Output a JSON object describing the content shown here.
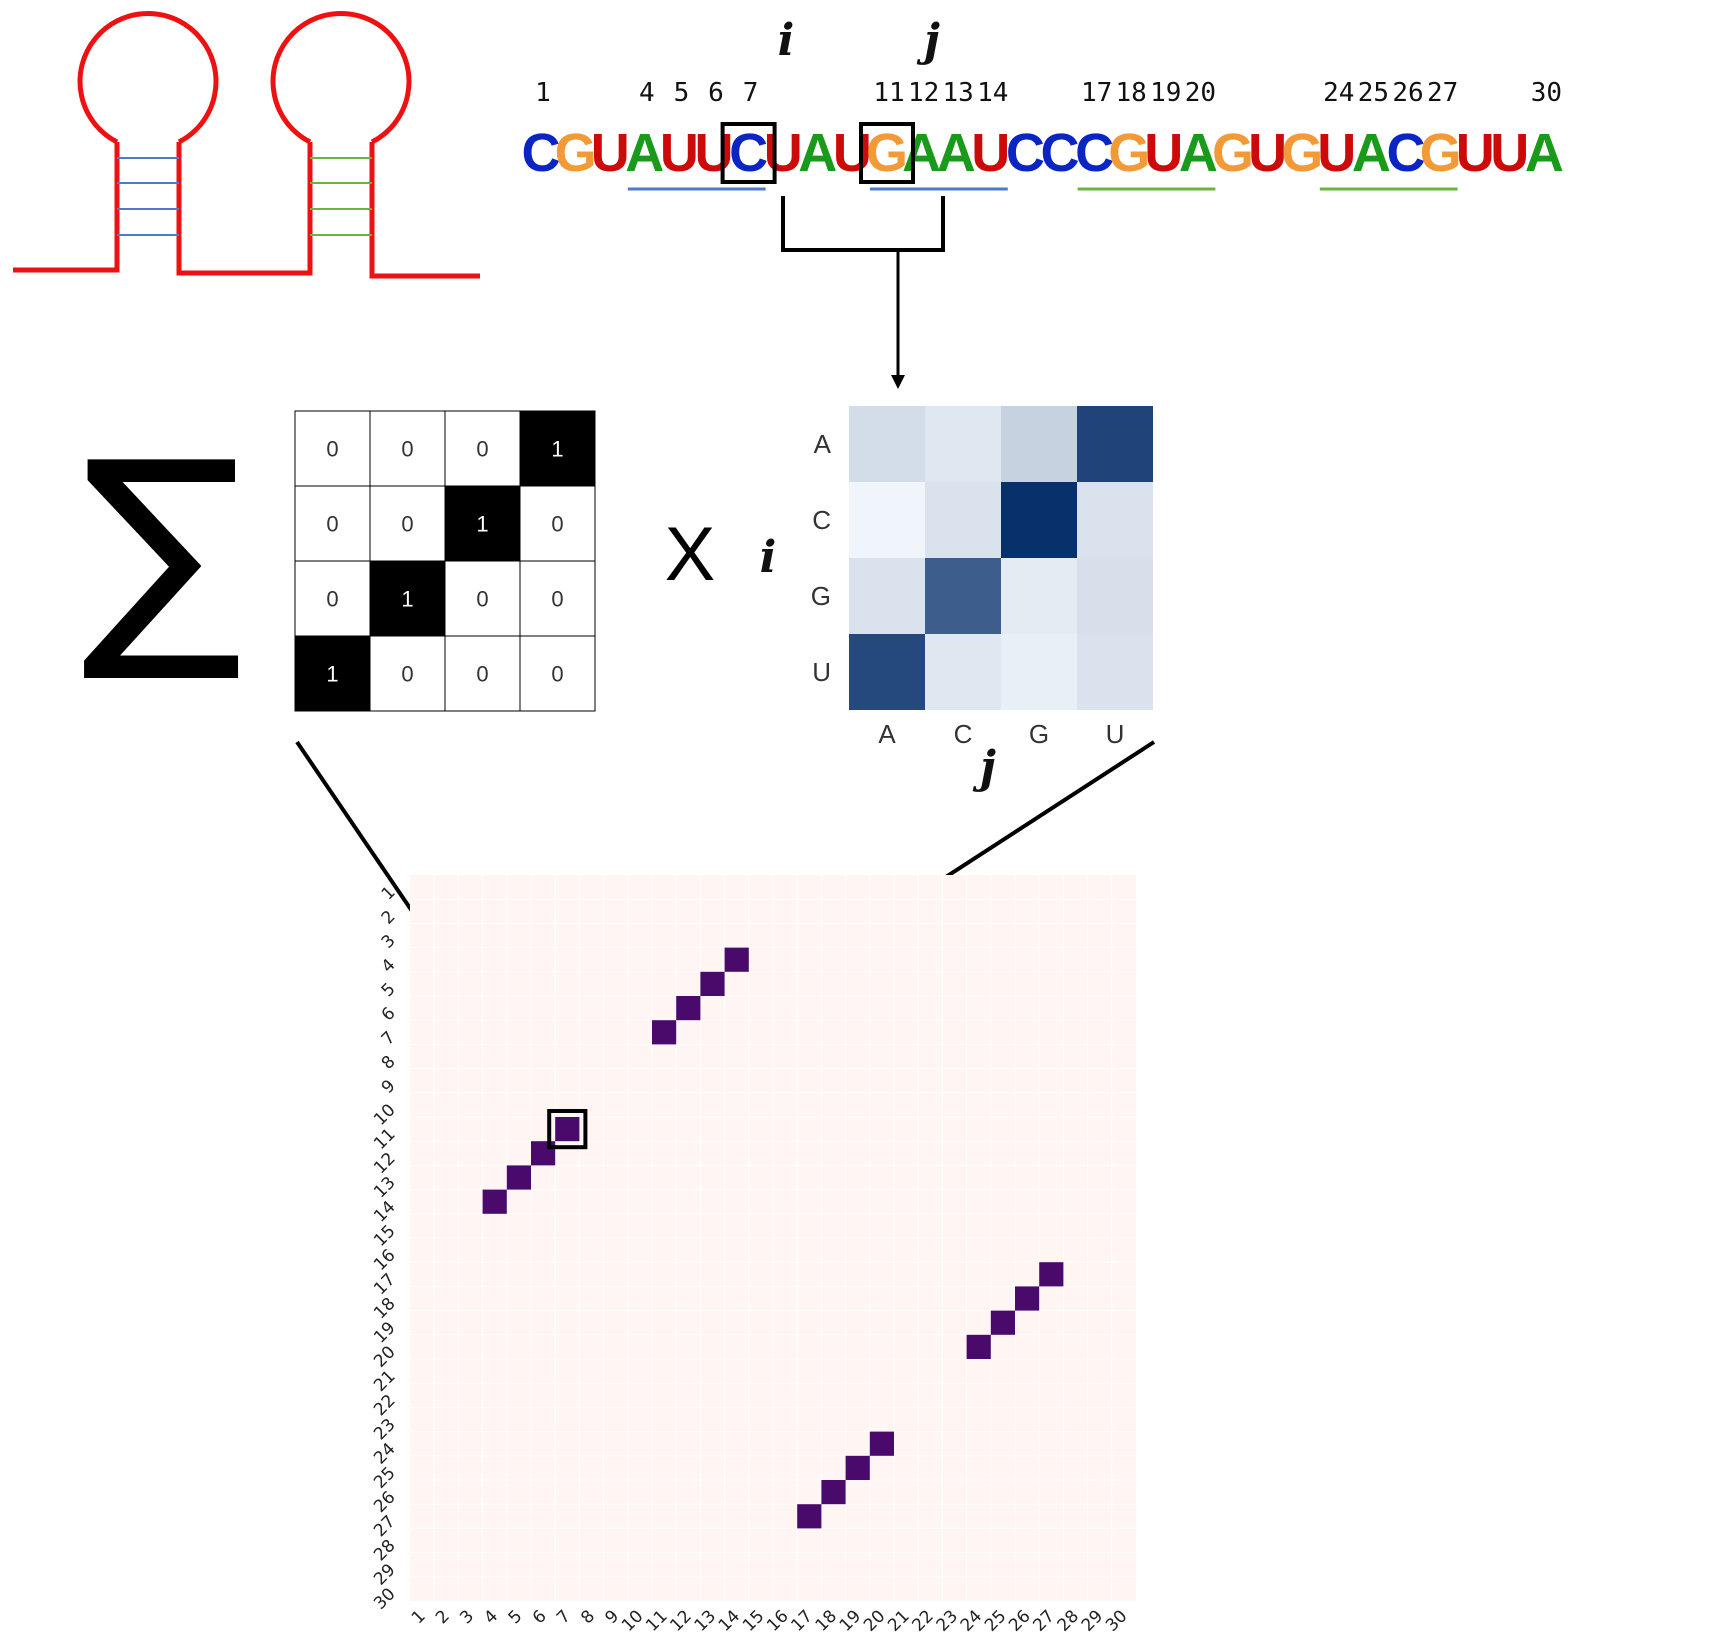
{
  "sequence": {
    "nucleotides": [
      "C",
      "G",
      "U",
      "A",
      "U",
      "U",
      "C",
      "U",
      "A",
      "U",
      "G",
      "A",
      "A",
      "U",
      "C",
      "C",
      "C",
      "G",
      "U",
      "A",
      "G",
      "U",
      "G",
      "U",
      "A",
      "C",
      "G",
      "U",
      "U",
      "A"
    ],
    "position_labels": [
      "1",
      "4",
      "5",
      "6",
      "7",
      "11",
      "12",
      "13",
      "14",
      "17",
      "18",
      "19",
      "20",
      "24",
      "25",
      "26",
      "27",
      "30"
    ],
    "label_positions": [
      1,
      4,
      5,
      6,
      7,
      11,
      12,
      13,
      14,
      17,
      18,
      19,
      20,
      24,
      25,
      26,
      27,
      30
    ],
    "highlight_i": 7,
    "highlight_j": 11,
    "i_label": "i",
    "j_label": "j",
    "colors": {
      "A": "#1a9a1a",
      "C": "#0b24c4",
      "G": "#f39a38",
      "U": "#cc0a0a"
    },
    "underlines": [
      {
        "from": 4,
        "to": 7,
        "color": "#4f79c9"
      },
      {
        "from": 11,
        "to": 14,
        "color": "#4f79c9"
      },
      {
        "from": 17,
        "to": 20,
        "color": "#6db33f"
      },
      {
        "from": 24,
        "to": 27,
        "color": "#6db33f"
      }
    ]
  },
  "hairpins": {
    "stem_colors": [
      "#4f79c9",
      "#6db33f"
    ],
    "loop_color": "#ee1111"
  },
  "operators": {
    "sum": "∑",
    "times": "X"
  },
  "binary_matrix": {
    "values": [
      [
        0,
        0,
        0,
        1
      ],
      [
        0,
        0,
        1,
        0
      ],
      [
        0,
        1,
        0,
        0
      ],
      [
        1,
        0,
        0,
        0
      ]
    ]
  },
  "score_matrix": {
    "row_labels": [
      "A",
      "C",
      "G",
      "U"
    ],
    "col_labels": [
      "A",
      "C",
      "G",
      "U"
    ],
    "row_axis": "i",
    "col_axis": "j",
    "values": [
      [
        0.15,
        0.1,
        0.2,
        0.9
      ],
      [
        0.03,
        0.12,
        1.0,
        0.12
      ],
      [
        0.12,
        0.78,
        0.08,
        0.14
      ],
      [
        0.88,
        0.1,
        0.06,
        0.12
      ]
    ],
    "colormap": "Blues"
  },
  "chart_data": {
    "type": "heatmap",
    "x_ticks": [
      "1",
      "2",
      "3",
      "4",
      "5",
      "6",
      "7",
      "8",
      "9",
      "10",
      "11",
      "12",
      "13",
      "14",
      "15",
      "16",
      "17",
      "18",
      "19",
      "20",
      "21",
      "22",
      "23",
      "24",
      "25",
      "26",
      "27",
      "28",
      "29",
      "30"
    ],
    "y_ticks": [
      "1",
      "2",
      "3",
      "4",
      "5",
      "6",
      "7",
      "8",
      "9",
      "10",
      "11",
      "12",
      "13",
      "14",
      "15",
      "16",
      "17",
      "18",
      "19",
      "20",
      "21",
      "22",
      "23",
      "24",
      "25",
      "26",
      "27",
      "28",
      "29",
      "30"
    ],
    "cells": [
      {
        "x": 14,
        "y": 4
      },
      {
        "x": 13,
        "y": 5
      },
      {
        "x": 12,
        "y": 6
      },
      {
        "x": 11,
        "y": 7
      },
      {
        "x": 7,
        "y": 11
      },
      {
        "x": 6,
        "y": 12
      },
      {
        "x": 5,
        "y": 13
      },
      {
        "x": 4,
        "y": 14
      },
      {
        "x": 27,
        "y": 17
      },
      {
        "x": 26,
        "y": 18
      },
      {
        "x": 25,
        "y": 19
      },
      {
        "x": 24,
        "y": 20
      },
      {
        "x": 20,
        "y": 24
      },
      {
        "x": 19,
        "y": 25
      },
      {
        "x": 18,
        "y": 26
      },
      {
        "x": 17,
        "y": 27
      }
    ],
    "highlighted_cell": {
      "x": 7,
      "y": 11
    },
    "background_color": "#fff6f3",
    "cell_color": "#4a0a6b"
  }
}
